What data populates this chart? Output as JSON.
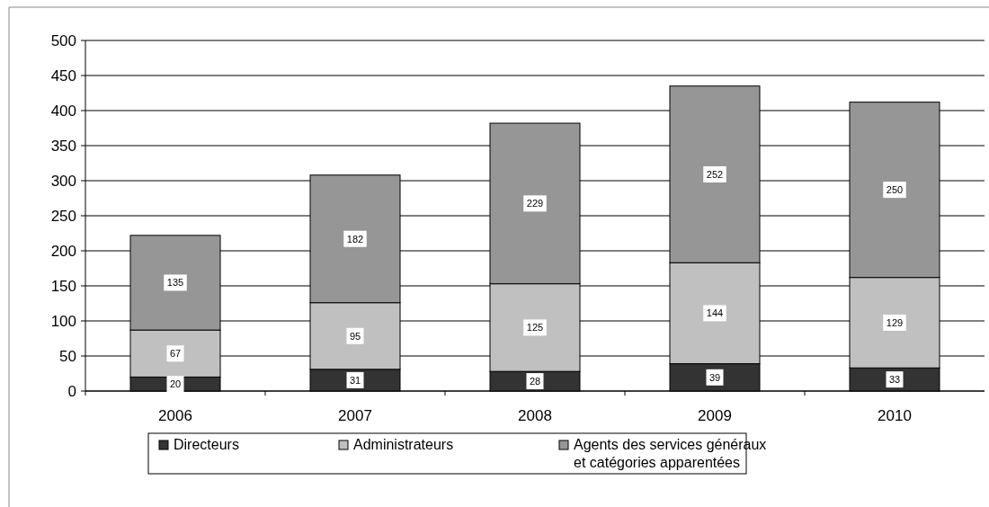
{
  "chart_data": {
    "type": "bar",
    "stacked": true,
    "categories": [
      "2006",
      "2007",
      "2008",
      "2009",
      "2010"
    ],
    "series": [
      {
        "name": "Directeurs",
        "color": "#333333",
        "values": [
          20,
          31,
          28,
          39,
          33
        ]
      },
      {
        "name": "Administrateurs",
        "color": "#c0c0c0",
        "values": [
          67,
          95,
          125,
          144,
          129
        ]
      },
      {
        "name": "Agents des services généraux et catégories apparentées",
        "color": "#969696",
        "values": [
          135,
          182,
          229,
          252,
          250
        ]
      }
    ],
    "ylim": [
      0,
      500
    ],
    "yticks": [
      0,
      50,
      100,
      150,
      200,
      250,
      300,
      350,
      400,
      450,
      500
    ],
    "grid": "y",
    "legend": "bottom",
    "data_labels": true
  }
}
